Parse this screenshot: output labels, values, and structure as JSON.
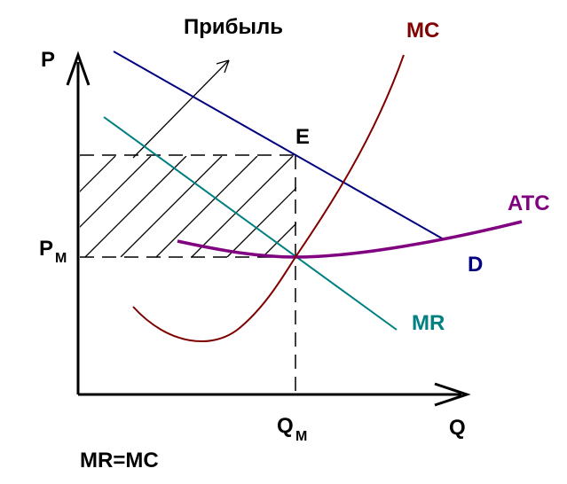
{
  "labels": {
    "profit": "Прибыль",
    "p_axis": "P",
    "q_axis": "Q",
    "pm_main": "P",
    "pm_sub": "M",
    "qm_main": "Q",
    "qm_sub": "M",
    "equilibrium": "E",
    "mc": "MC",
    "atc": "ATC",
    "mr": "MR",
    "demand": "D",
    "condition": "MR=MC"
  },
  "colors": {
    "axes": "#000000",
    "demand": "#000080",
    "marginal_revenue": "#008080",
    "marginal_cost": "#800000",
    "average_total_cost": "#800080",
    "text": "#000000"
  }
}
